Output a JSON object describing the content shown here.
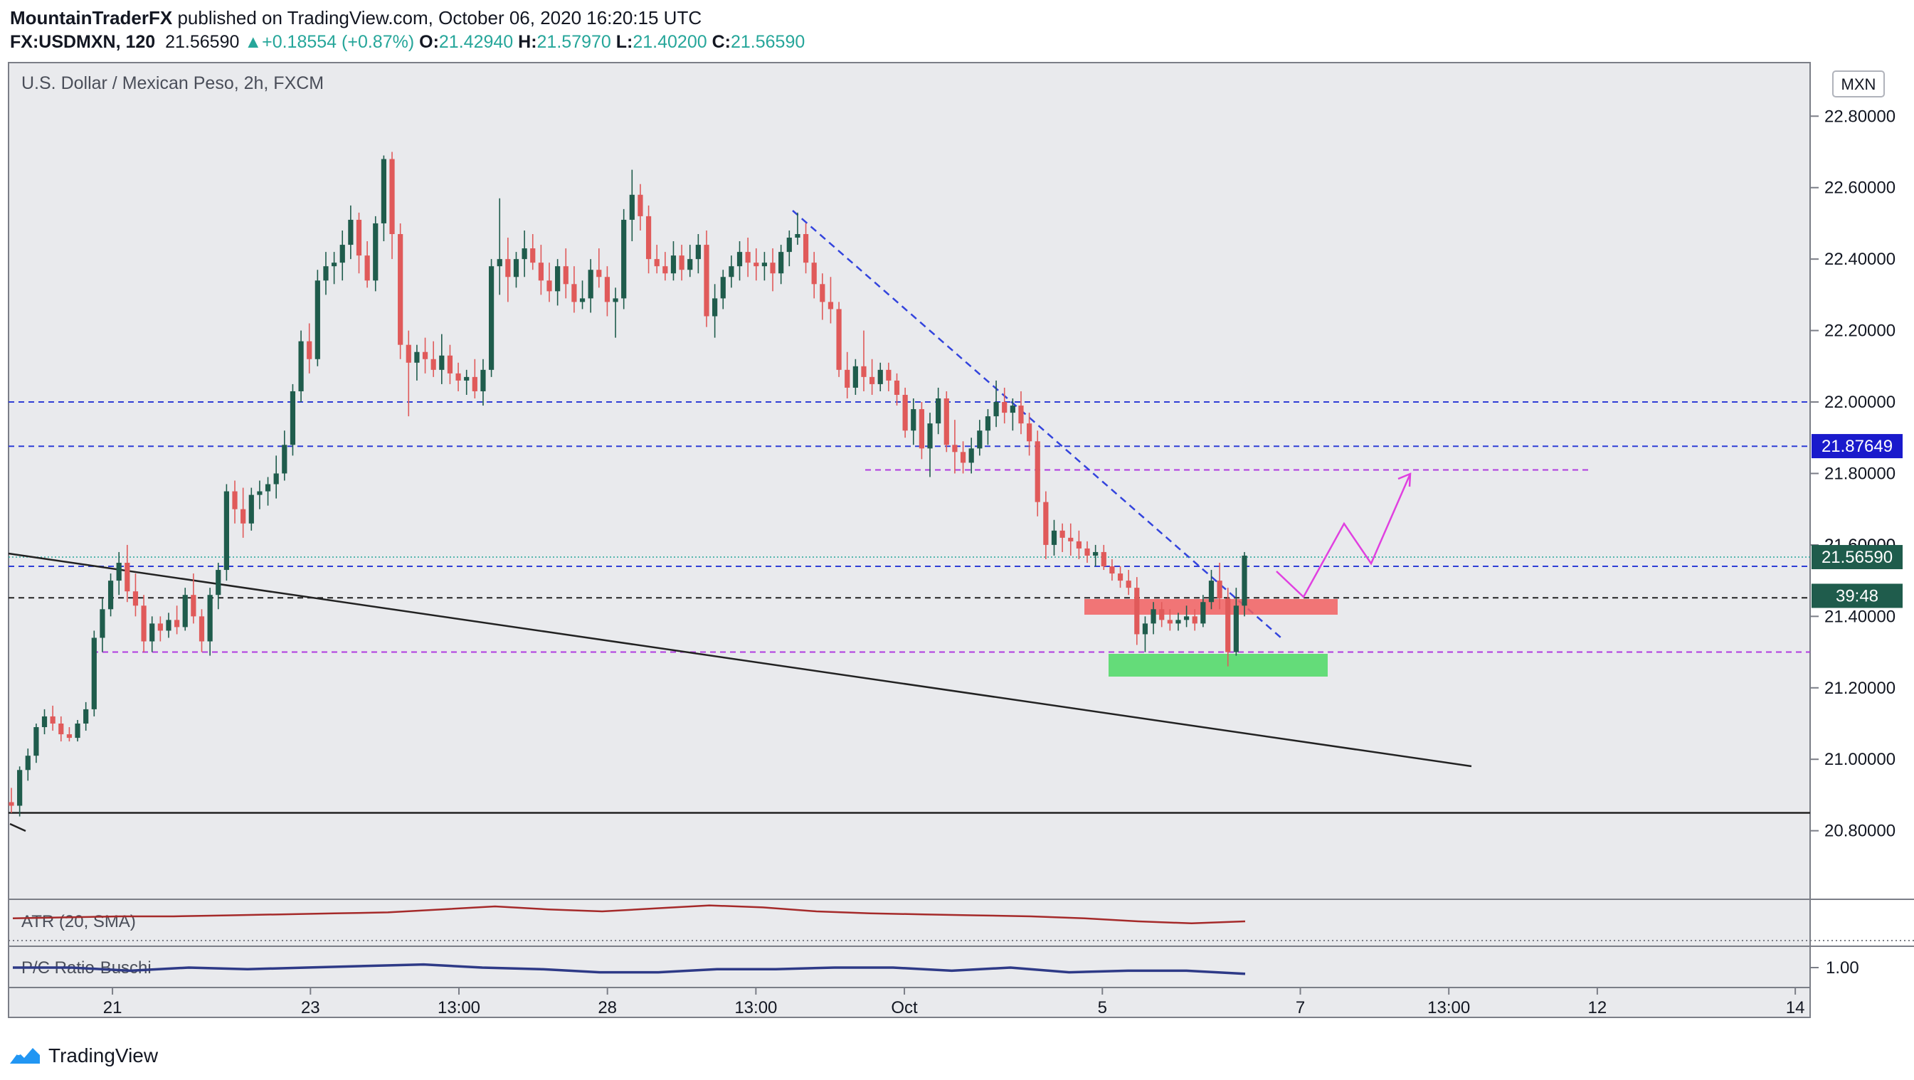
{
  "header": {
    "author": "MountainTraderFX",
    "published": " published on TradingView.com, October 06, 2020 16:20:15 UTC",
    "symbol": "FX:USDMXN, 120",
    "last": "21.56590",
    "change": "+0.18554 (+0.87%)",
    "o_label": "O:",
    "o_value": "21.42940",
    "h_label": "H:",
    "h_value": "21.57970",
    "l_label": "L:",
    "l_value": "21.40200",
    "c_label": "C:",
    "c_value": "21.56590"
  },
  "footer": {
    "brand": "TradingView"
  },
  "colors": {
    "bull": "#1f5c4c",
    "bear": "#e05a5a",
    "blue_level": "#2f3ed6",
    "purple_level": "#b03be0",
    "trend": "#3344dd",
    "projection": "#e040e0",
    "atr": "#a52a2a",
    "ratio": "#2e3a87",
    "red_zone": "#f26060",
    "green_zone": "#4cd964",
    "background": "#e9eaed"
  },
  "chart_data": [
    {
      "type": "candlestick",
      "title": "U.S. Dollar / Mexican Peso, 2h, FXCM",
      "currency": "MXN",
      "ylim": [
        20.64,
        22.93
      ],
      "yticks": [
        "22.80000",
        "22.60000",
        "22.40000",
        "22.20000",
        "22.00000",
        "21.80000",
        "21.60000",
        "21.40000",
        "21.20000",
        "21.00000",
        "20.80000"
      ],
      "xticks": [
        {
          "label": "21",
          "x": 12
        },
        {
          "label": "23",
          "x": 32
        },
        {
          "label": "13:00",
          "x": 47
        },
        {
          "label": "28",
          "x": 62
        },
        {
          "label": "13:00",
          "x": 77
        },
        {
          "label": "Oct",
          "x": 92
        },
        {
          "label": "5",
          "x": 112
        },
        {
          "label": "7",
          "x": 132
        },
        {
          "label": "13:00",
          "x": 147
        },
        {
          "label": "12",
          "x": 162
        },
        {
          "label": "14",
          "x": 182
        }
      ],
      "xlim": [
        1.5,
        183.5
      ],
      "candles": [
        [
          20.88,
          20.92,
          20.85,
          20.87
        ],
        [
          20.87,
          20.98,
          20.84,
          20.97
        ],
        [
          20.97,
          21.03,
          20.94,
          21.01
        ],
        [
          21.01,
          21.1,
          20.99,
          21.09
        ],
        [
          21.09,
          21.14,
          21.07,
          21.12
        ],
        [
          21.12,
          21.15,
          21.08,
          21.1
        ],
        [
          21.1,
          21.12,
          21.05,
          21.07
        ],
        [
          21.07,
          21.09,
          21.05,
          21.06
        ],
        [
          21.06,
          21.11,
          21.05,
          21.1
        ],
        [
          21.1,
          21.16,
          21.08,
          21.14
        ],
        [
          21.14,
          21.36,
          21.12,
          21.34
        ],
        [
          21.34,
          21.45,
          21.3,
          21.42
        ],
        [
          21.42,
          21.52,
          21.4,
          21.5
        ],
        [
          21.5,
          21.58,
          21.46,
          21.55
        ],
        [
          21.55,
          21.6,
          21.44,
          21.47
        ],
        [
          21.47,
          21.52,
          21.4,
          21.43
        ],
        [
          21.43,
          21.46,
          21.3,
          21.33
        ],
        [
          21.33,
          21.4,
          21.3,
          21.38
        ],
        [
          21.38,
          21.4,
          21.33,
          21.36
        ],
        [
          21.36,
          21.41,
          21.34,
          21.39
        ],
        [
          21.39,
          21.43,
          21.35,
          21.37
        ],
        [
          21.37,
          21.48,
          21.36,
          21.46
        ],
        [
          21.46,
          21.52,
          21.38,
          21.4
        ],
        [
          21.4,
          21.42,
          21.3,
          21.33
        ],
        [
          21.33,
          21.48,
          21.29,
          21.46
        ],
        [
          21.46,
          21.55,
          21.42,
          21.53
        ],
        [
          21.53,
          21.77,
          21.5,
          21.75
        ],
        [
          21.75,
          21.78,
          21.66,
          21.7
        ],
        [
          21.7,
          21.76,
          21.62,
          21.66
        ],
        [
          21.66,
          21.76,
          21.64,
          21.74
        ],
        [
          21.74,
          21.78,
          21.7,
          21.75
        ],
        [
          21.75,
          21.79,
          21.71,
          21.77
        ],
        [
          21.77,
          21.85,
          21.73,
          21.8
        ],
        [
          21.8,
          21.92,
          21.78,
          21.88
        ],
        [
          21.88,
          22.05,
          21.85,
          22.03
        ],
        [
          22.03,
          22.2,
          22.0,
          22.17
        ],
        [
          22.17,
          22.22,
          22.08,
          22.12
        ],
        [
          22.12,
          22.37,
          22.1,
          22.34
        ],
        [
          22.34,
          22.42,
          22.3,
          22.38
        ],
        [
          22.38,
          22.42,
          22.33,
          22.39
        ],
        [
          22.39,
          22.48,
          22.34,
          22.44
        ],
        [
          22.44,
          22.55,
          22.4,
          22.51
        ],
        [
          22.51,
          22.53,
          22.36,
          22.41
        ],
        [
          22.41,
          22.45,
          22.32,
          22.34
        ],
        [
          22.34,
          22.52,
          22.31,
          22.5
        ],
        [
          22.5,
          22.69,
          22.45,
          22.68
        ],
        [
          22.68,
          22.7,
          22.4,
          22.47
        ],
        [
          22.47,
          22.5,
          22.12,
          22.16
        ],
        [
          22.16,
          22.2,
          21.96,
          22.11
        ],
        [
          22.11,
          22.16,
          22.06,
          22.14
        ],
        [
          22.14,
          22.18,
          22.08,
          22.12
        ],
        [
          22.12,
          22.17,
          22.07,
          22.09
        ],
        [
          22.09,
          22.19,
          22.05,
          22.13
        ],
        [
          22.13,
          22.16,
          22.05,
          22.08
        ],
        [
          22.08,
          22.11,
          22.03,
          22.06
        ],
        [
          22.06,
          22.09,
          22.02,
          22.07
        ],
        [
          22.07,
          22.12,
          22.01,
          22.03
        ],
        [
          22.03,
          22.12,
          21.99,
          22.09
        ],
        [
          22.09,
          22.4,
          22.07,
          22.38
        ],
        [
          22.38,
          22.57,
          22.3,
          22.4
        ],
        [
          22.4,
          22.46,
          22.28,
          22.35
        ],
        [
          22.35,
          22.42,
          22.32,
          22.4
        ],
        [
          22.4,
          22.48,
          22.35,
          22.43
        ],
        [
          22.43,
          22.47,
          22.37,
          22.39
        ],
        [
          22.39,
          22.44,
          22.3,
          22.34
        ],
        [
          22.34,
          22.39,
          22.28,
          22.31
        ],
        [
          22.31,
          22.4,
          22.27,
          22.38
        ],
        [
          22.38,
          22.43,
          22.29,
          22.33
        ],
        [
          22.33,
          22.38,
          22.25,
          22.28
        ],
        [
          22.28,
          22.34,
          22.26,
          22.29
        ],
        [
          22.29,
          22.4,
          22.25,
          22.37
        ],
        [
          22.37,
          22.43,
          22.32,
          22.35
        ],
        [
          22.35,
          22.38,
          22.24,
          22.28
        ],
        [
          22.28,
          22.32,
          22.18,
          22.29
        ],
        [
          22.29,
          22.54,
          22.26,
          22.51
        ],
        [
          22.51,
          22.65,
          22.45,
          22.58
        ],
        [
          22.58,
          22.61,
          22.48,
          22.52
        ],
        [
          22.52,
          22.55,
          22.36,
          22.4
        ],
        [
          22.4,
          22.44,
          22.36,
          22.38
        ],
        [
          22.38,
          22.42,
          22.34,
          22.36
        ],
        [
          22.36,
          22.45,
          22.34,
          22.41
        ],
        [
          22.41,
          22.44,
          22.34,
          22.37
        ],
        [
          22.37,
          22.44,
          22.35,
          22.4
        ],
        [
          22.4,
          22.47,
          22.36,
          22.44
        ],
        [
          22.44,
          22.48,
          22.21,
          22.24
        ],
        [
          22.24,
          22.33,
          22.18,
          22.29
        ],
        [
          22.29,
          22.37,
          22.26,
          22.35
        ],
        [
          22.35,
          22.41,
          22.32,
          22.38
        ],
        [
          22.38,
          22.45,
          22.34,
          22.42
        ],
        [
          22.42,
          22.46,
          22.35,
          22.39
        ],
        [
          22.39,
          22.43,
          22.34,
          22.38
        ],
        [
          22.38,
          22.42,
          22.34,
          22.39
        ],
        [
          22.39,
          22.43,
          22.31,
          22.36
        ],
        [
          22.36,
          22.44,
          22.33,
          22.42
        ],
        [
          22.42,
          22.48,
          22.38,
          22.46
        ],
        [
          22.46,
          22.53,
          22.44,
          22.47
        ],
        [
          22.47,
          22.5,
          22.36,
          22.39
        ],
        [
          22.39,
          22.42,
          22.29,
          22.33
        ],
        [
          22.33,
          22.36,
          22.23,
          22.28
        ],
        [
          22.28,
          22.35,
          22.22,
          22.26
        ],
        [
          22.26,
          22.28,
          22.07,
          22.09
        ],
        [
          22.09,
          22.14,
          22.01,
          22.04
        ],
        [
          22.04,
          22.12,
          22.02,
          22.1
        ],
        [
          22.1,
          22.2,
          22.03,
          22.07
        ],
        [
          22.07,
          22.12,
          22.02,
          22.05
        ],
        [
          22.05,
          22.11,
          22.03,
          22.09
        ],
        [
          22.09,
          22.11,
          22.03,
          22.06
        ],
        [
          22.06,
          22.08,
          21.99,
          22.02
        ],
        [
          22.02,
          22.04,
          21.9,
          21.92
        ],
        [
          21.92,
          22.01,
          21.88,
          21.98
        ],
        [
          21.98,
          22.0,
          21.84,
          21.87
        ],
        [
          21.87,
          21.97,
          21.79,
          21.94
        ],
        [
          21.94,
          22.04,
          21.91,
          22.01
        ],
        [
          22.01,
          22.03,
          21.86,
          21.88
        ],
        [
          21.88,
          21.95,
          21.8,
          21.86
        ],
        [
          21.86,
          21.89,
          21.8,
          21.83
        ],
        [
          21.83,
          21.9,
          21.8,
          21.87
        ],
        [
          21.87,
          21.95,
          21.85,
          21.92
        ],
        [
          21.92,
          21.98,
          21.88,
          21.96
        ],
        [
          21.96,
          22.06,
          21.93,
          22.0
        ],
        [
          22.0,
          22.04,
          21.94,
          21.97
        ],
        [
          21.97,
          22.01,
          21.92,
          21.99
        ],
        [
          21.99,
          22.03,
          21.91,
          21.94
        ],
        [
          21.94,
          21.97,
          21.85,
          21.89
        ],
        [
          21.89,
          21.92,
          21.68,
          21.72
        ],
        [
          21.72,
          21.75,
          21.56,
          21.6
        ],
        [
          21.6,
          21.67,
          21.57,
          21.64
        ],
        [
          21.64,
          21.66,
          21.58,
          21.62
        ],
        [
          21.62,
          21.66,
          21.57,
          21.61
        ],
        [
          21.61,
          21.64,
          21.56,
          21.59
        ],
        [
          21.59,
          21.61,
          21.55,
          21.57
        ],
        [
          21.57,
          21.6,
          21.54,
          21.58
        ],
        [
          21.58,
          21.6,
          21.53,
          21.54
        ],
        [
          21.54,
          21.56,
          21.5,
          21.52
        ],
        [
          21.52,
          21.54,
          21.48,
          21.5
        ],
        [
          21.5,
          21.53,
          21.46,
          21.48
        ],
        [
          21.48,
          21.51,
          21.32,
          21.35
        ],
        [
          21.35,
          21.4,
          21.3,
          21.38
        ],
        [
          21.38,
          21.44,
          21.35,
          21.42
        ],
        [
          21.42,
          21.44,
          21.37,
          21.39
        ],
        [
          21.39,
          21.42,
          21.36,
          21.38
        ],
        [
          21.38,
          21.41,
          21.36,
          21.39
        ],
        [
          21.39,
          21.43,
          21.37,
          21.4
        ],
        [
          21.4,
          21.42,
          21.36,
          21.38
        ],
        [
          21.38,
          21.46,
          21.37,
          21.44
        ],
        [
          21.44,
          21.53,
          21.42,
          21.5
        ],
        [
          21.5,
          21.55,
          21.42,
          21.45
        ],
        [
          21.45,
          21.48,
          21.26,
          21.3
        ],
        [
          21.3,
          21.48,
          21.29,
          21.43
        ],
        [
          21.43,
          21.58,
          21.4,
          21.57
        ]
      ],
      "levels": [
        {
          "label": "blue-dashed",
          "price": 22.0
        },
        {
          "label": "blue-dashed",
          "price": 21.876
        },
        {
          "label": "blue-dashed",
          "price": 21.54
        },
        {
          "label": "black-dashed",
          "price": 21.452
        },
        {
          "label": "purple-dashed",
          "price": 21.3
        },
        {
          "label": "black-solid",
          "price": 20.85
        }
      ],
      "price_labels": [
        {
          "text": "21.87649",
          "price": 21.87649
        },
        {
          "text": "21.56590",
          "price": 21.5659
        },
        {
          "text": "39:48",
          "price": 21.4575
        }
      ],
      "obscured_tick": "21.60000"
    },
    {
      "type": "line",
      "title": "ATR (20, SMA)",
      "values": [
        0.08,
        0.09,
        0.1,
        0.1,
        0.11,
        0.12,
        0.13,
        0.14,
        0.17,
        0.2,
        0.17,
        0.15,
        0.18,
        0.21,
        0.19,
        0.15,
        0.13,
        0.12,
        0.11,
        0.1,
        0.08,
        0.05,
        0.03,
        0.05
      ]
    },
    {
      "type": "line",
      "title": "P/C Ratio-Buschi",
      "ytick": "1.00",
      "values": [
        1.0,
        1.0,
        0.98,
        1.0,
        0.99,
        1.0,
        1.01,
        1.02,
        1.0,
        0.99,
        0.97,
        0.97,
        0.99,
        0.99,
        1.0,
        1.0,
        0.98,
        1.0,
        0.97,
        0.98,
        0.98,
        0.96
      ]
    }
  ]
}
